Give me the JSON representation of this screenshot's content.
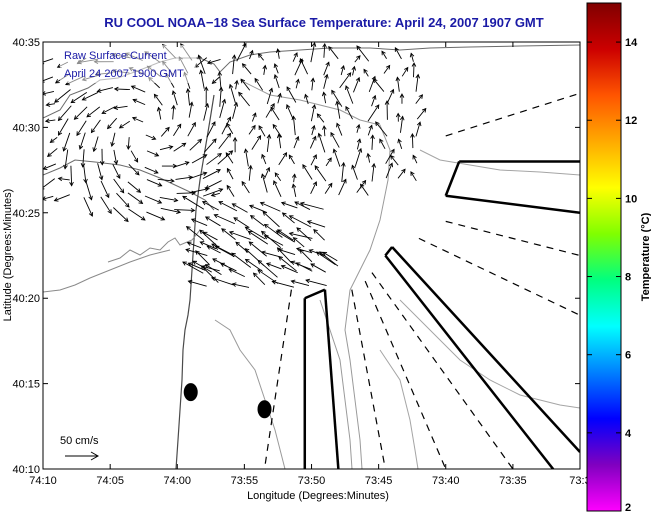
{
  "chart_data": {
    "type": "vector-field-map",
    "title": "RU COOL  NOAA−18  Sea Surface Temperature:  April 24, 2007 1907 GMT",
    "xlabel": "Longitude (Degrees:Minutes)",
    "ylabel": "Latitude (Degrees:Minutes)",
    "xlim": [
      -74.1667,
      -73.5
    ],
    "ylim": [
      40.1667,
      40.5833
    ],
    "x_ticks": [
      {
        "value": -74.1667,
        "label": "74:10"
      },
      {
        "value": -74.0833,
        "label": "74:05"
      },
      {
        "value": -74.0,
        "label": "74:00"
      },
      {
        "value": -73.9167,
        "label": "73:55"
      },
      {
        "value": -73.8333,
        "label": "73:50"
      },
      {
        "value": -73.75,
        "label": "73:45"
      },
      {
        "value": -73.6667,
        "label": "73:40"
      },
      {
        "value": -73.5833,
        "label": "73:35"
      },
      {
        "value": -73.5,
        "label": "73:3"
      }
    ],
    "y_ticks": [
      {
        "value": 40.1667,
        "label": "40:10"
      },
      {
        "value": 40.25,
        "label": "40:15"
      },
      {
        "value": 40.3333,
        "label": "40:20"
      },
      {
        "value": 40.4167,
        "label": "40:25"
      },
      {
        "value": 40.5,
        "label": "40:30"
      },
      {
        "value": 40.5833,
        "label": "40:35"
      }
    ],
    "legend": [
      "Raw Surface Current",
      "April 24 2007 1900 GMT"
    ],
    "scale_arrow_label": "50 cm/s",
    "grid": false,
    "colorbar": {
      "label": "Temperature (°C)",
      "range": [
        2,
        15
      ],
      "ticks": [
        2,
        4,
        6,
        8,
        10,
        12,
        14
      ],
      "colors": [
        "#ff00ff",
        "#8000c0",
        "#0000ff",
        "#0080ff",
        "#00ffff",
        "#00ff80",
        "#80ff00",
        "#ffff00",
        "#ffaa00",
        "#ff5500",
        "#cc0000",
        "#800000"
      ]
    },
    "stations": [
      {
        "lon": -73.9833,
        "lat": 40.2417
      },
      {
        "lon": -73.8917,
        "lat": 40.225
      }
    ],
    "sector_lines": [
      {
        "type": "solid",
        "pts": [
          [
            -73.65,
            40.4667
          ],
          [
            -73.5,
            40.4667
          ]
        ]
      },
      {
        "type": "solid",
        "pts": [
          [
            -73.6667,
            40.4333
          ],
          [
            -73.5,
            40.4167
          ]
        ]
      },
      {
        "type": "solid",
        "pts": [
          [
            -73.65,
            40.4667
          ],
          [
            -73.6667,
            40.4333
          ]
        ]
      },
      {
        "type": "solid",
        "pts": [
          [
            -73.7333,
            40.3833
          ],
          [
            -73.5,
            40.1833
          ]
        ]
      },
      {
        "type": "solid",
        "pts": [
          [
            -73.7417,
            40.375
          ],
          [
            -73.5,
            40.1333
          ]
        ]
      },
      {
        "type": "solid",
        "pts": [
          [
            -73.7333,
            40.3833
          ],
          [
            -73.7417,
            40.375
          ]
        ]
      },
      {
        "type": "solid",
        "pts": [
          [
            -73.8417,
            40.3333
          ],
          [
            -73.8417,
            40.1667
          ]
        ]
      },
      {
        "type": "solid",
        "pts": [
          [
            -73.8167,
            40.3417
          ],
          [
            -73.8,
            40.1667
          ]
        ]
      },
      {
        "type": "solid",
        "pts": [
          [
            -73.8417,
            40.3333
          ],
          [
            -73.8167,
            40.3417
          ]
        ]
      },
      {
        "type": "dashed",
        "pts": [
          [
            -73.6667,
            40.4917
          ],
          [
            -73.5,
            40.5333
          ]
        ]
      },
      {
        "type": "dashed",
        "pts": [
          [
            -73.6667,
            40.4083
          ],
          [
            -73.5,
            40.375
          ]
        ]
      },
      {
        "type": "dashed",
        "pts": [
          [
            -73.7,
            40.3917
          ],
          [
            -73.5,
            40.3167
          ]
        ]
      },
      {
        "type": "dashed",
        "pts": [
          [
            -73.7583,
            40.3583
          ],
          [
            -73.5833,
            40.1667
          ]
        ]
      },
      {
        "type": "dashed",
        "pts": [
          [
            -73.7667,
            40.35
          ],
          [
            -73.6667,
            40.1667
          ]
        ]
      },
      {
        "type": "dashed",
        "pts": [
          [
            -73.7833,
            40.3417
          ],
          [
            -73.7417,
            40.1667
          ]
        ]
      },
      {
        "type": "dashed",
        "pts": [
          [
            -73.8583,
            40.3417
          ],
          [
            -73.8917,
            40.1667
          ]
        ]
      }
    ]
  }
}
